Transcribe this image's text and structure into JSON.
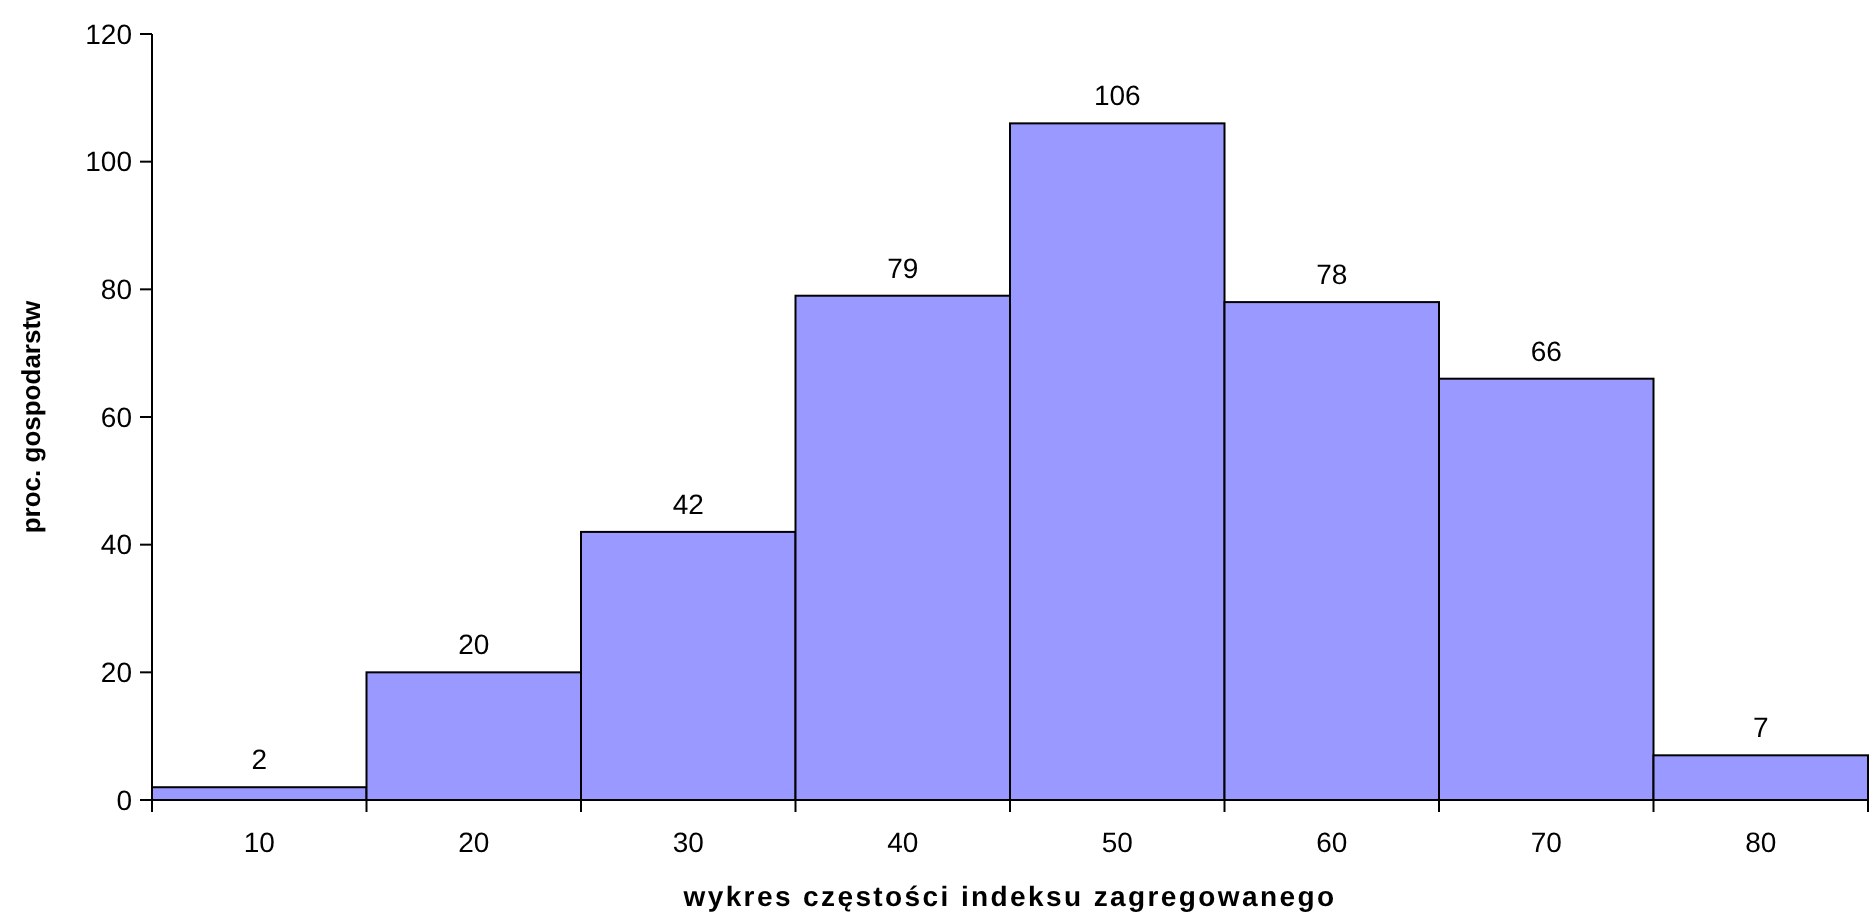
{
  "chart_data": {
    "type": "bar",
    "xlabel": "wykres częstości indeksu zagregowanego",
    "ylabel": "proc. gospodarstw",
    "categories": [
      "10",
      "20",
      "30",
      "40",
      "50",
      "60",
      "70",
      "80"
    ],
    "values": [
      2,
      20,
      42,
      79,
      106,
      78,
      66,
      7
    ],
    "color": "#9999ff",
    "ylim": [
      0,
      120
    ],
    "yticks": [
      0,
      20,
      40,
      60,
      80,
      100,
      120
    ],
    "data_labels": true,
    "grid": false
  }
}
